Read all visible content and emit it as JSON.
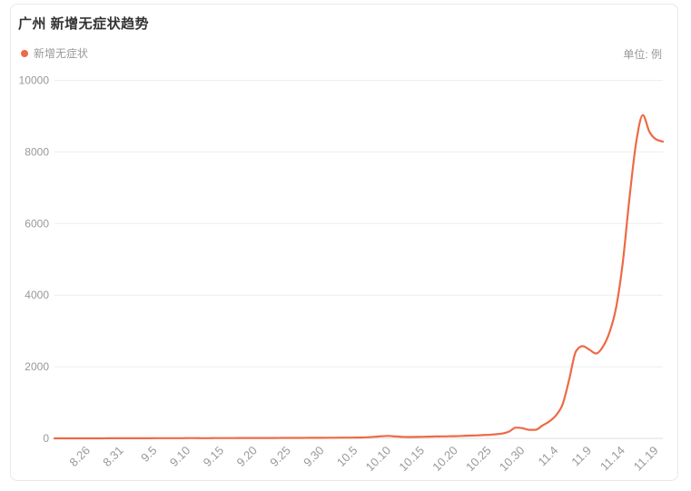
{
  "header": {
    "title": "广州 新增无症状趋势",
    "unit": "单位: 例"
  },
  "legend": {
    "items": [
      {
        "label": "新增无症状",
        "color": "#ed6a45"
      }
    ]
  },
  "colors": {
    "line": "#ed6a45",
    "title_text": "#333333",
    "axis_label": "#999999",
    "grid_line": "#eeeeee",
    "axis_line": "#dddddd",
    "card_border": "#e8e8e8"
  },
  "chart_data": {
    "type": "line",
    "title": "广州 新增无症状趋势",
    "unit": "例",
    "legend": [
      "新增无症状"
    ],
    "ylim": [
      0,
      10000
    ],
    "y_ticks": [
      0,
      2000,
      4000,
      6000,
      8000,
      10000
    ],
    "x_tick_labels": [
      "8.26",
      "8.31",
      "9.5",
      "9.10",
      "9.15",
      "9.20",
      "9.25",
      "9.30",
      "10.5",
      "10.10",
      "10.15",
      "10.20",
      "10.25",
      "10.30",
      "11.4",
      "11.9",
      "11.14",
      "11.19"
    ],
    "x": [
      "8.21",
      "8.22",
      "8.23",
      "8.24",
      "8.25",
      "8.26",
      "8.27",
      "8.28",
      "8.29",
      "8.30",
      "8.31",
      "9.1",
      "9.2",
      "9.3",
      "9.4",
      "9.5",
      "9.6",
      "9.7",
      "9.8",
      "9.9",
      "9.10",
      "9.11",
      "9.12",
      "9.13",
      "9.14",
      "9.15",
      "9.16",
      "9.17",
      "9.18",
      "9.19",
      "9.20",
      "9.21",
      "9.22",
      "9.23",
      "9.24",
      "9.25",
      "9.26",
      "9.27",
      "9.28",
      "9.29",
      "9.30",
      "10.1",
      "10.2",
      "10.3",
      "10.4",
      "10.5",
      "10.6",
      "10.7",
      "10.8",
      "10.9",
      "10.10",
      "10.11",
      "10.12",
      "10.13",
      "10.14",
      "10.15",
      "10.16",
      "10.17",
      "10.18",
      "10.19",
      "10.20",
      "10.21",
      "10.22",
      "10.23",
      "10.24",
      "10.25",
      "10.26",
      "10.27",
      "10.28",
      "10.29",
      "10.30",
      "10.31",
      "11.1",
      "11.2",
      "11.3",
      "11.4",
      "11.5",
      "11.6",
      "11.7",
      "11.8",
      "11.9",
      "11.10",
      "11.11",
      "11.12",
      "11.13",
      "11.14",
      "11.15",
      "11.16",
      "11.17",
      "11.18",
      "11.19",
      "11.20"
    ],
    "values": [
      0,
      0,
      0,
      0,
      0,
      1,
      1,
      1,
      2,
      2,
      2,
      2,
      2,
      3,
      3,
      4,
      4,
      5,
      5,
      6,
      8,
      7,
      6,
      6,
      7,
      7,
      8,
      8,
      9,
      9,
      10,
      10,
      11,
      11,
      12,
      12,
      13,
      13,
      14,
      14,
      15,
      18,
      19,
      20,
      21,
      22,
      25,
      32,
      45,
      62,
      68,
      52,
      42,
      38,
      40,
      44,
      48,
      52,
      55,
      58,
      62,
      68,
      75,
      82,
      90,
      100,
      115,
      135,
      190,
      300,
      285,
      238,
      242,
      360,
      470,
      640,
      950,
      1650,
      2430,
      2575,
      2480,
      2370,
      2550,
      2950,
      3650,
      4900,
      6700,
      8250,
      9030,
      8560,
      8350,
      8290
    ]
  }
}
